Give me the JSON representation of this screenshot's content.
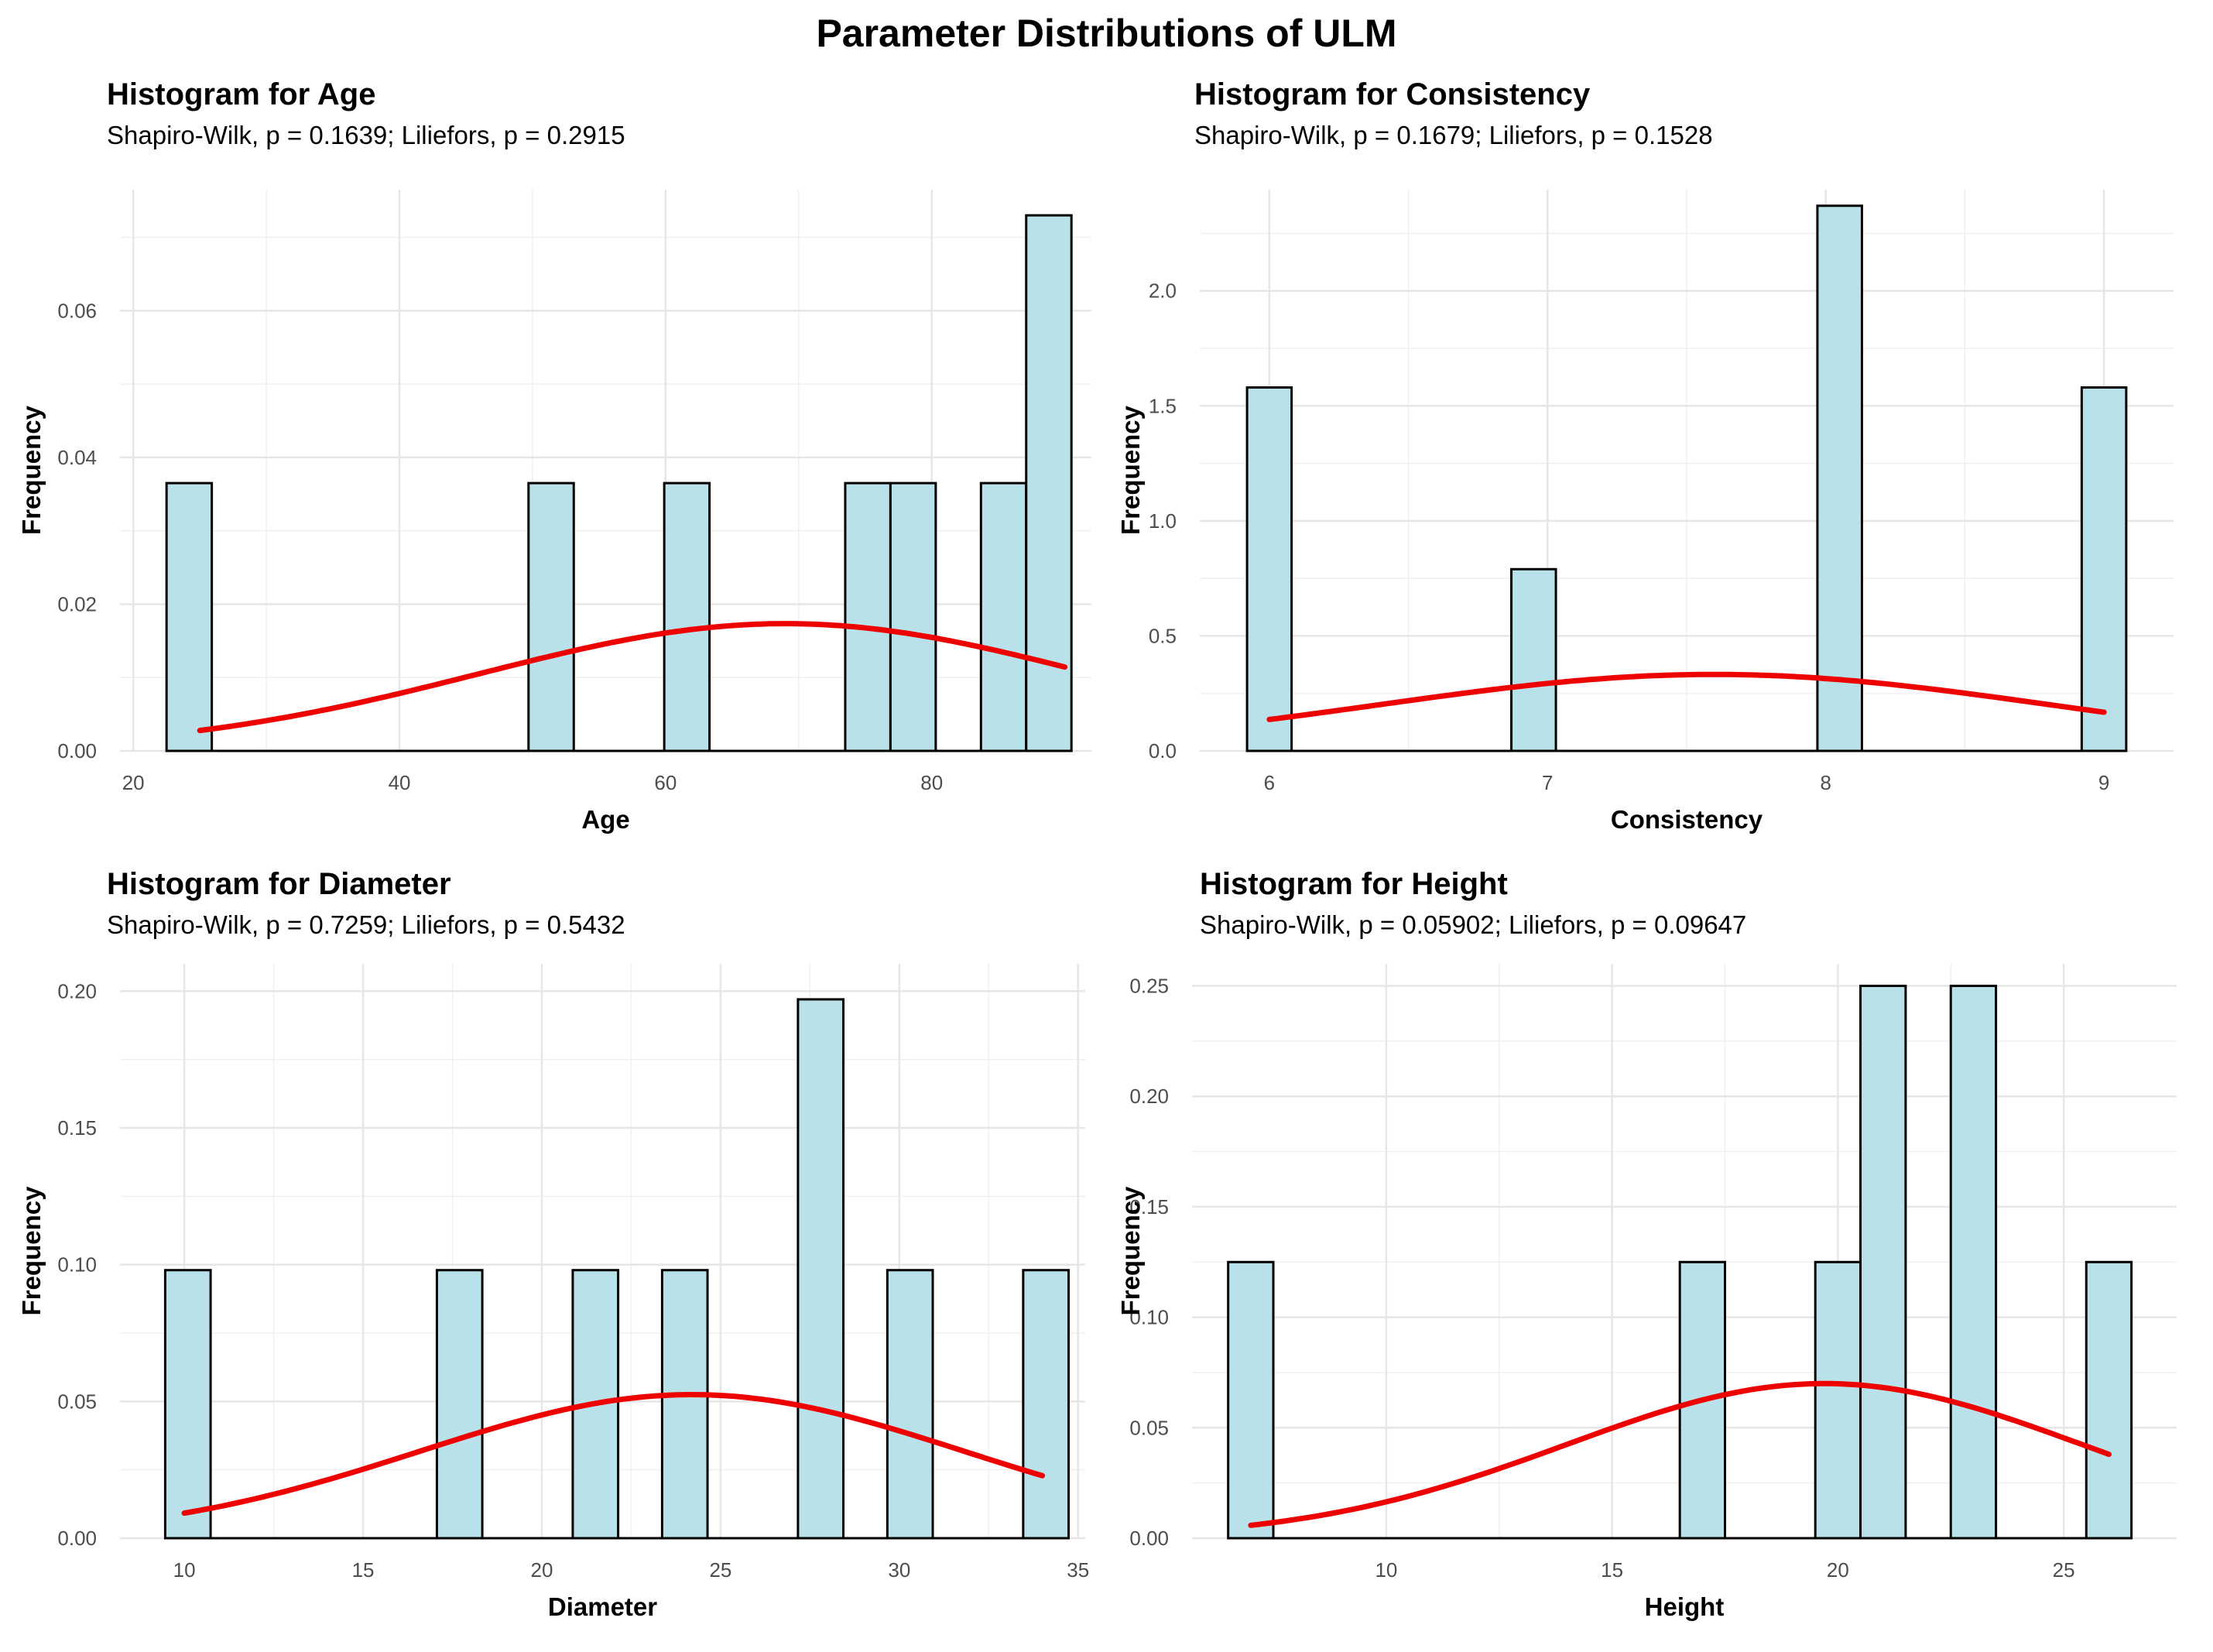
{
  "figure_title": "Parameter Distributions of ULM",
  "chart_data": [
    {
      "type": "bar",
      "title": "Histogram for Age",
      "subtitle": "Shapiro-Wilk, p = 0.1639; Liliefors, p = 0.2915",
      "xlabel": "Age",
      "ylabel": "Frequency",
      "xlim": [
        19,
        92
      ],
      "ylim": [
        0,
        0.0765
      ],
      "xticks": [
        20,
        40,
        60,
        80
      ],
      "yticks": [
        0,
        0.02,
        0.04,
        0.06
      ],
      "ytick_labels": [
        "0.00",
        "0.02",
        "0.04",
        "0.06"
      ],
      "bin_width": 3.4,
      "bins": [
        {
          "center": 24.2,
          "value": 0.0365
        },
        {
          "center": 51.4,
          "value": 0.0365
        },
        {
          "center": 61.6,
          "value": 0.0365
        },
        {
          "center": 75.2,
          "value": 0.0365
        },
        {
          "center": 78.6,
          "value": 0.0365
        },
        {
          "center": 85.4,
          "value": 0.0365
        },
        {
          "center": 88.8,
          "value": 0.073
        }
      ],
      "density_curve": {
        "x_range": [
          25,
          90
        ],
        "mean": 69,
        "sd": 23,
        "color": "#ee0000"
      },
      "bar_fill": "#b9e1ea"
    },
    {
      "type": "bar",
      "title": "Histogram for Consistency",
      "subtitle": "Shapiro-Wilk, p = 0.1679; Liliefors, p = 0.1528",
      "xlabel": "Consistency",
      "ylabel": "Frequency",
      "xlim": [
        5.75,
        9.25
      ],
      "ylim": [
        0,
        2.44
      ],
      "xticks": [
        6,
        7,
        8,
        9
      ],
      "yticks": [
        0,
        0.5,
        1.0,
        1.5,
        2.0
      ],
      "ytick_labels": [
        "0.0",
        "0.5",
        "1.0",
        "1.5",
        "2.0"
      ],
      "bin_width": 0.16,
      "bins": [
        {
          "center": 6.0,
          "value": 1.58
        },
        {
          "center": 6.95,
          "value": 0.79
        },
        {
          "center": 8.05,
          "value": 2.37
        },
        {
          "center": 9.0,
          "value": 1.58
        }
      ],
      "density_curve": {
        "x_range": [
          6,
          9
        ],
        "mean": 7.6,
        "sd": 1.2,
        "color": "#ee0000"
      },
      "bar_fill": "#b9e1ea"
    },
    {
      "type": "bar",
      "title": "Histogram for Diameter",
      "subtitle": "Shapiro-Wilk, p = 0.7259; Liliefors, p = 0.5432",
      "xlabel": "Diameter",
      "ylabel": "Frequency",
      "xlim": [
        8.2,
        35.2
      ],
      "ylim": [
        0,
        0.21
      ],
      "xticks": [
        10,
        15,
        20,
        25,
        30,
        35
      ],
      "yticks": [
        0,
        0.05,
        0.1,
        0.15,
        0.2
      ],
      "ytick_labels": [
        "0.00",
        "0.05",
        "0.10",
        "0.15",
        "0.20"
      ],
      "bin_width": 1.27,
      "bins": [
        {
          "center": 10.1,
          "value": 0.098
        },
        {
          "center": 17.7,
          "value": 0.098
        },
        {
          "center": 21.5,
          "value": 0.098
        },
        {
          "center": 24.0,
          "value": 0.098
        },
        {
          "center": 27.8,
          "value": 0.197
        },
        {
          "center": 30.3,
          "value": 0.098
        },
        {
          "center": 34.1,
          "value": 0.098
        }
      ],
      "density_curve": {
        "x_range": [
          10,
          34
        ],
        "mean": 24.2,
        "sd": 7.6,
        "color": "#ee0000"
      },
      "bar_fill": "#b9e1ea"
    },
    {
      "type": "bar",
      "title": "Histogram for Height",
      "subtitle": "Shapiro-Wilk, p = 0.05902; Liliefors, p = 0.09647",
      "xlabel": "Height",
      "ylabel": "Frequency",
      "xlim": [
        5.7,
        27.5
      ],
      "ylim": [
        0,
        0.26
      ],
      "xticks": [
        10,
        15,
        20,
        25
      ],
      "yticks": [
        0,
        0.05,
        0.1,
        0.15,
        0.2,
        0.25
      ],
      "ytick_labels": [
        "0.00",
        "0.05",
        "0.10",
        "0.15",
        "0.20",
        "0.25"
      ],
      "bin_width": 1.0,
      "bins": [
        {
          "center": 7.0,
          "value": 0.125
        },
        {
          "center": 17.0,
          "value": 0.125
        },
        {
          "center": 20.0,
          "value": 0.125
        },
        {
          "center": 21.0,
          "value": 0.25
        },
        {
          "center": 23.0,
          "value": 0.25
        },
        {
          "center": 26.0,
          "value": 0.125
        }
      ],
      "density_curve": {
        "x_range": [
          7,
          26
        ],
        "mean": 19.7,
        "sd": 5.7,
        "color": "#ee0000"
      },
      "bar_fill": "#b9e1ea"
    }
  ]
}
